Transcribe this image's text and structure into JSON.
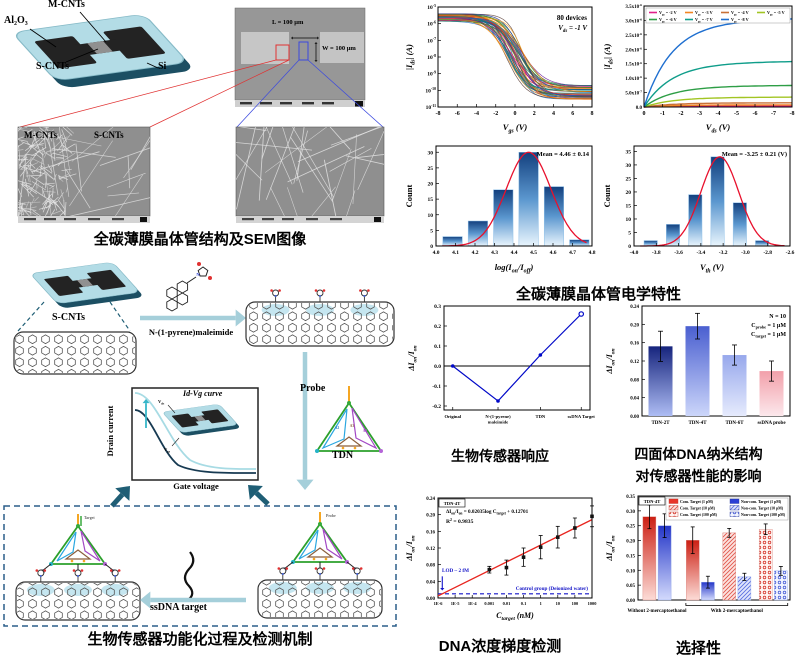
{
  "captions": {
    "sem_structure": "全碳薄膜晶体管结构及SEM图像",
    "electrical": "全碳薄膜晶体管电学特性",
    "mechanism": "生物传感器功能化过程及检测机制",
    "response": "生物传感器响应",
    "tdn_line1": "四面体DNA纳米结构",
    "tdn_line2": "对传感器性能的影响",
    "concentration": "DNA浓度梯度检测",
    "selectivity": "选择性"
  },
  "device_schematic": {
    "m_cnts": "M-CNTs",
    "al2o3": "Al₂O₃",
    "s_cnts": "S-CNTs",
    "si": "Si"
  },
  "sem_device": {
    "length_label": "L = 100 μm",
    "width_label": "W = 100 μm"
  },
  "sem_films": {
    "m_cnts": "M-CNTs",
    "s_cnts": "S-CNTs"
  },
  "scheme": {
    "s_cnts": "S-CNTs",
    "reagent": "N-(1-pyrene)maleimide",
    "probe": "Probe",
    "tdn": "TDN",
    "idvg_title": "Id-Vg curve",
    "drain_current": "Drain current",
    "gate_voltage": "Gate voltage",
    "vds": "V_{ds}",
    "vgs": "V_{gs}",
    "ssdna_target": "ssDNA target",
    "target_small": "Target",
    "probe_small": "Probe",
    "tdn_strands": [
      "A2",
      "A3",
      "A4"
    ]
  },
  "chart_data": [
    {
      "id": "transfer_curves",
      "type": "line",
      "xlabel": "V_{gs} (V)",
      "ylabel": "|I_{ds}| (A)",
      "x_range": [
        -8,
        8
      ],
      "x_ticks": [
        -8,
        -6,
        -4,
        -2,
        0,
        2,
        4,
        6,
        8
      ],
      "y_scale": "log",
      "y_tick_exponents": [
        -5,
        -6,
        -7,
        -8,
        -9,
        -10,
        -11
      ],
      "annotations": [
        "80 devices",
        "V_{ds} = -1 V"
      ],
      "n_devices": 80,
      "on_current_A": 2e-06,
      "off_current_A": 1e-10,
      "description": "p-type transfer curves of 80 all-carbon TFTs"
    },
    {
      "id": "output_curves",
      "type": "line",
      "xlabel": "V_{ds} (V)",
      "ylabel": "|I_{ds}| (A)",
      "x_ticks": [
        0,
        -1,
        -2,
        -3,
        -4,
        -5,
        -6,
        -7,
        -8
      ],
      "y_range": [
        0,
        3.5e-06
      ],
      "y_tick_labels": [
        "0.0",
        "5.0x10^{-7}",
        "1.0x10^{-6}",
        "1.5x10^{-6}",
        "2.0x10^{-6}",
        "2.5x10^{-6}",
        "3.0x10^{-6}",
        "3.5x10^{-6}"
      ],
      "series": [
        {
          "name": "V_{gs} = -2 V",
          "color": "#e0218a",
          "saturation_A": 3e-08
        },
        {
          "name": "V_{gs} = -3 V",
          "color": "#f28522",
          "saturation_A": 7e-08
        },
        {
          "name": "V_{gs} = -4 V",
          "color": "#c87137",
          "saturation_A": 1.4e-07
        },
        {
          "name": "V_{gs} = -5 V",
          "color": "#a2c523",
          "saturation_A": 3.3e-07
        },
        {
          "name": "V_{gs} = -6 V",
          "color": "#2e9e46",
          "saturation_A": 7.2e-07
        },
        {
          "name": "V_{gs} = -7 V",
          "color": "#0f9d8a",
          "saturation_A": 1.52e-06
        },
        {
          "name": "V_{gs} = -8 V",
          "color": "#1f6fd0",
          "saturation_A": 2.95e-06
        }
      ]
    },
    {
      "id": "log_on_off_histogram",
      "type": "bar",
      "xlabel": "log(I_{on}/I_{off})",
      "ylabel": "Count",
      "annotation": "Mean = 4.46 ± 0.14",
      "x_ticks": [
        4.0,
        4.1,
        4.2,
        4.3,
        4.4,
        4.5,
        4.6,
        4.7,
        4.8
      ],
      "y_ticks": [
        0,
        5,
        10,
        15,
        20,
        25,
        30
      ],
      "y_range": [
        0,
        32
      ],
      "bin_centers": [
        4.085,
        4.215,
        4.345,
        4.475,
        4.605,
        4.735
      ],
      "bin_width": 0.1,
      "counts": [
        3,
        8,
        18,
        30,
        19,
        2
      ],
      "fit": {
        "type": "gaussian",
        "mean": 4.475,
        "sigma": 0.115,
        "amplitude": 30,
        "color": "#e8112d"
      }
    },
    {
      "id": "vth_histogram",
      "type": "bar",
      "xlabel": "V_{th} (V)",
      "ylabel": "Count",
      "annotation": "Mean = -3.25 ± 0.21 (V)",
      "x_ticks": [
        -4.0,
        -3.8,
        -3.6,
        -3.4,
        -3.2,
        -3.0,
        -2.8,
        -2.6
      ],
      "y_ticks": [
        0,
        5,
        10,
        15,
        20,
        25,
        30,
        35
      ],
      "y_range": [
        0,
        37
      ],
      "bin_centers": [
        -3.85,
        -3.65,
        -3.45,
        -3.25,
        -3.05,
        -2.85
      ],
      "bin_width": 0.12,
      "counts": [
        2,
        8,
        19,
        33,
        16,
        2
      ],
      "fit": {
        "type": "gaussian",
        "mean": -3.23,
        "sigma": 0.17,
        "amplitude": 33,
        "color": "#e8112d"
      }
    },
    {
      "id": "biosensor_response",
      "type": "line",
      "ylabel": "ΔI_{on}/I_{on}",
      "categories": [
        "Original",
        "N-(1-pyrene)\nmaleimide",
        "TDN",
        "ssDNA Target"
      ],
      "values": [
        0.0,
        -0.175,
        0.055,
        0.26
      ],
      "y_ticks": [
        -0.2,
        -0.1,
        0.0,
        0.1,
        0.2,
        0.3
      ],
      "y_range": [
        -0.22,
        0.3
      ],
      "line_color": "#0008c8",
      "zero_line": true
    },
    {
      "id": "tdn_structure_effect",
      "type": "bar",
      "ylabel": "ΔI_{on}/I_{on}",
      "categories": [
        "TDN-2T",
        "TDN-4T",
        "TDN-6T",
        "ssDNA probe"
      ],
      "values": [
        0.152,
        0.196,
        0.133,
        0.098
      ],
      "errors": [
        0.033,
        0.028,
        0.022,
        0.022
      ],
      "y_ticks": [
        0.0,
        0.04,
        0.08,
        0.12,
        0.16,
        0.2,
        0.24
      ],
      "y_range": [
        0,
        0.24
      ],
      "annotations": [
        "N = 10",
        "C_{probe} = 1 μM",
        "C_{target} = 1 μM"
      ],
      "bar_colors_top": [
        "#16247d",
        "#4a5fd0",
        "#97a8ec",
        "#f2a0aa"
      ],
      "bar_colors_bottom": [
        "#aebdf4",
        "#ccd6fa",
        "#e6ebfd",
        "#fce8ec"
      ]
    },
    {
      "id": "dna_concentration",
      "type": "scatter",
      "xlabel": "C_{target} (nM)",
      "ylabel": "ΔI_{on}/I_{on}",
      "x_scale": "log",
      "x_tick_labels": [
        "1E-6",
        "1E-5",
        "1E-4",
        "0.001",
        "0.01",
        "0.1",
        "1",
        "10",
        "100",
        "1000"
      ],
      "x_tick_values": [
        1e-06,
        1e-05,
        0.0001,
        0.001,
        0.01,
        0.1,
        1,
        10,
        100,
        1000
      ],
      "y_ticks": [
        0.0,
        0.04,
        0.08,
        0.12,
        0.16,
        0.2,
        0.24
      ],
      "y_range": [
        0,
        0.24
      ],
      "points_x": [
        0.001,
        0.01,
        0.1,
        1,
        10,
        100,
        1000
      ],
      "points_y": [
        0.068,
        0.073,
        0.098,
        0.122,
        0.146,
        0.168,
        0.196
      ],
      "points_yerr": [
        0.008,
        0.018,
        0.022,
        0.028,
        0.026,
        0.024,
        0.025
      ],
      "fit_label_line1": "ΔI_{on}/I_{on} = 0.02035log C_{target} + 0.12701",
      "fit_slope": 0.02035,
      "fit_intercept": 0.12701,
      "r_squared_label": "R^{2} = 0.9835",
      "fit_color": "#e8251f",
      "corner_label": "TDN-4T",
      "lod_label": "LOD ~ 2 fM",
      "control_label": "Control group (Deionized water)",
      "control_level": 0.01,
      "control_color": "#1414c8"
    },
    {
      "id": "selectivity",
      "type": "bar",
      "ylabel": "ΔI_{on}/I_{on}",
      "corner_label": "TDN-4T",
      "y_ticks": [
        0.0,
        0.05,
        0.1,
        0.15,
        0.2,
        0.25,
        0.3,
        0.35
      ],
      "y_range": [
        0,
        0.35
      ],
      "groups": [
        "Without 2-mercaptoethanol",
        "With 2-mercaptoethanol"
      ],
      "legend": [
        {
          "label": "Com. Target (1 pM)",
          "color": "red",
          "pattern": "solid"
        },
        {
          "label": "Non-com. Target (1 pM)",
          "color": "blue",
          "pattern": "solid"
        },
        {
          "label": "Com. Target (10 pM)",
          "color": "red",
          "pattern": "hatch"
        },
        {
          "label": "Non-com. Target (10 pM)",
          "color": "blue",
          "pattern": "hatch"
        },
        {
          "label": "Com. Target (100 pM)",
          "color": "red",
          "pattern": "circles"
        },
        {
          "label": "Non-com. Target (100 pM)",
          "color": "blue",
          "pattern": "circles"
        }
      ],
      "bars": [
        {
          "group": 0,
          "value": 0.28,
          "error": 0.04,
          "color": "red",
          "pattern": "solid"
        },
        {
          "group": 0,
          "value": 0.25,
          "error": 0.04,
          "color": "blue",
          "pattern": "solid"
        },
        {
          "group": 1,
          "value": 0.201,
          "error": 0.045,
          "color": "red",
          "pattern": "solid"
        },
        {
          "group": 1,
          "value": 0.06,
          "error": 0.02,
          "color": "blue",
          "pattern": "solid"
        },
        {
          "group": 1,
          "value": 0.226,
          "error": 0.015,
          "color": "red",
          "pattern": "hatch"
        },
        {
          "group": 1,
          "value": 0.078,
          "error": 0.012,
          "color": "blue",
          "pattern": "hatch"
        },
        {
          "group": 1,
          "value": 0.238,
          "error": 0.018,
          "color": "red",
          "pattern": "circles"
        },
        {
          "group": 1,
          "value": 0.098,
          "error": 0.015,
          "color": "blue",
          "pattern": "circles"
        }
      ]
    }
  ]
}
